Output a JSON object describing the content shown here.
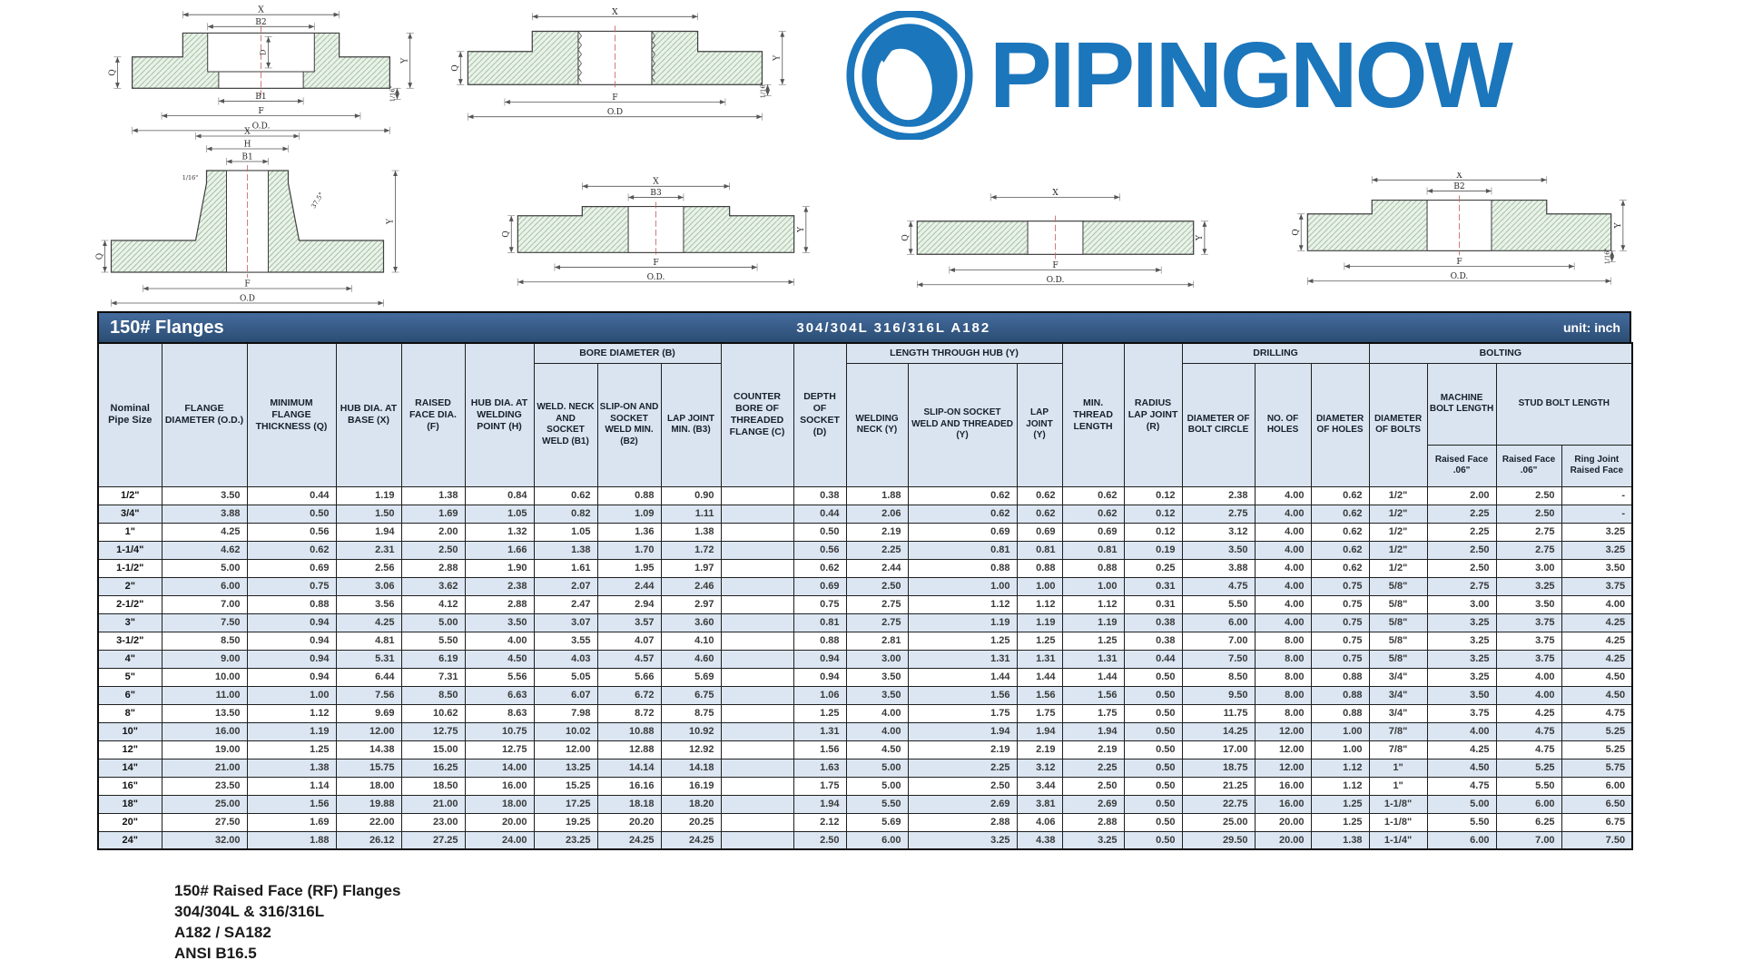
{
  "logo": {
    "text": "PIPINGNOW",
    "color": "#1b76bc"
  },
  "diagrams": [
    {
      "name": "socket-weld-flange",
      "labels": [
        "X",
        "B2",
        "D",
        "B1",
        "F",
        "O.D.",
        "Q",
        "Y",
        "1/16\""
      ]
    },
    {
      "name": "threaded-flange",
      "labels": [
        "X",
        "F",
        "O.D",
        "Q",
        "Y",
        "1/16\""
      ]
    },
    {
      "name": "weld-neck-flange",
      "labels": [
        "X",
        "H",
        "B1",
        "1/16\"",
        "37.5°",
        "Q",
        "F",
        "O.D",
        "Y"
      ]
    },
    {
      "name": "slip-on-flange",
      "labels": [
        "X",
        "B3",
        "Q",
        "F",
        "O.D.",
        "Y"
      ]
    },
    {
      "name": "lap-joint-stub",
      "labels": [
        "X",
        "Q",
        "F",
        "O.D.",
        "Y"
      ]
    },
    {
      "name": "lap-joint-flange",
      "labels": [
        "X",
        "B2",
        "Q",
        "F",
        "O.D.",
        "Y",
        "1/16\""
      ]
    }
  ],
  "table": {
    "title": "150# Flanges",
    "materials": "304/304L  316/316L  A182",
    "unit": "unit: inch",
    "columns": {
      "nominal": "Nominal Pipe Size",
      "flange_diameter": "FLANGE DIAMETER (O.D.)",
      "min_thickness": "MINIMUM FLANGE THICKNESS (Q)",
      "hub_base": "HUB DIA. AT BASE (X)",
      "raised_face": "RAISED FACE DIA. (F)",
      "hub_weld": "HUB DIA. AT WELDING POINT (H)",
      "bore_group": "BORE DIAMETER (B)",
      "b1": "WELD. NECK AND SOCKET WELD (B1)",
      "b2": "SLIP-ON AND SOCKET WELD MIN. (B2)",
      "b3": "LAP JOINT MIN. (B3)",
      "counter_bore": "COUNTER BORE OF THREADED FLANGE (C)",
      "socket_depth": "DEPTH OF SOCKET (D)",
      "hub_group": "LENGTH THROUGH HUB (Y)",
      "welding_neck": "WELDING NECK (Y)",
      "slip_on": "SLIP-ON SOCKET WELD AND THREADED (Y)",
      "lap_joint": "LAP JOINT (Y)",
      "min_thread": "MIN. THREAD LENGTH",
      "radius": "RADIUS LAP JOINT (R)",
      "drilling_group": "DRILLING",
      "bolt_circle": "DIAMETER OF BOLT CIRCLE",
      "num_holes": "NO. OF HOLES",
      "hole_dia": "DIAMETER OF HOLES",
      "bolting_group": "BOLTING",
      "bolt_dia": "DIAMETER OF BOLTS",
      "machine_bolt": "MACHINE BOLT LENGTH",
      "stud_bolt": "STUD BOLT LENGTH",
      "machine_rf": "Raised Face .06\"",
      "stud_rf": "Raised Face .06\"",
      "ring_joint": "Ring Joint Raised Face"
    },
    "rows": [
      [
        "1/2\"",
        "3.50",
        "0.44",
        "1.19",
        "1.38",
        "0.84",
        "0.62",
        "0.88",
        "0.90",
        "",
        "0.38",
        "1.88",
        "0.62",
        "0.62",
        "0.62",
        "0.12",
        "2.38",
        "4.00",
        "0.62",
        "1/2\"",
        "2.00",
        "2.50",
        "-"
      ],
      [
        "3/4\"",
        "3.88",
        "0.50",
        "1.50",
        "1.69",
        "1.05",
        "0.82",
        "1.09",
        "1.11",
        "",
        "0.44",
        "2.06",
        "0.62",
        "0.62",
        "0.62",
        "0.12",
        "2.75",
        "4.00",
        "0.62",
        "1/2\"",
        "2.25",
        "2.50",
        "-"
      ],
      [
        "1\"",
        "4.25",
        "0.56",
        "1.94",
        "2.00",
        "1.32",
        "1.05",
        "1.36",
        "1.38",
        "",
        "0.50",
        "2.19",
        "0.69",
        "0.69",
        "0.69",
        "0.12",
        "3.12",
        "4.00",
        "0.62",
        "1/2\"",
        "2.25",
        "2.75",
        "3.25"
      ],
      [
        "1-1/4\"",
        "4.62",
        "0.62",
        "2.31",
        "2.50",
        "1.66",
        "1.38",
        "1.70",
        "1.72",
        "",
        "0.56",
        "2.25",
        "0.81",
        "0.81",
        "0.81",
        "0.19",
        "3.50",
        "4.00",
        "0.62",
        "1/2\"",
        "2.50",
        "2.75",
        "3.25"
      ],
      [
        "1-1/2\"",
        "5.00",
        "0.69",
        "2.56",
        "2.88",
        "1.90",
        "1.61",
        "1.95",
        "1.97",
        "",
        "0.62",
        "2.44",
        "0.88",
        "0.88",
        "0.88",
        "0.25",
        "3.88",
        "4.00",
        "0.62",
        "1/2\"",
        "2.50",
        "3.00",
        "3.50"
      ],
      [
        "2\"",
        "6.00",
        "0.75",
        "3.06",
        "3.62",
        "2.38",
        "2.07",
        "2.44",
        "2.46",
        "",
        "0.69",
        "2.50",
        "1.00",
        "1.00",
        "1.00",
        "0.31",
        "4.75",
        "4.00",
        "0.75",
        "5/8\"",
        "2.75",
        "3.25",
        "3.75"
      ],
      [
        "2-1/2\"",
        "7.00",
        "0.88",
        "3.56",
        "4.12",
        "2.88",
        "2.47",
        "2.94",
        "2.97",
        "",
        "0.75",
        "2.75",
        "1.12",
        "1.12",
        "1.12",
        "0.31",
        "5.50",
        "4.00",
        "0.75",
        "5/8\"",
        "3.00",
        "3.50",
        "4.00"
      ],
      [
        "3\"",
        "7.50",
        "0.94",
        "4.25",
        "5.00",
        "3.50",
        "3.07",
        "3.57",
        "3.60",
        "",
        "0.81",
        "2.75",
        "1.19",
        "1.19",
        "1.19",
        "0.38",
        "6.00",
        "4.00",
        "0.75",
        "5/8\"",
        "3.25",
        "3.75",
        "4.25"
      ],
      [
        "3-1/2\"",
        "8.50",
        "0.94",
        "4.81",
        "5.50",
        "4.00",
        "3.55",
        "4.07",
        "4.10",
        "",
        "0.88",
        "2.81",
        "1.25",
        "1.25",
        "1.25",
        "0.38",
        "7.00",
        "8.00",
        "0.75",
        "5/8\"",
        "3.25",
        "3.75",
        "4.25"
      ],
      [
        "4\"",
        "9.00",
        "0.94",
        "5.31",
        "6.19",
        "4.50",
        "4.03",
        "4.57",
        "4.60",
        "",
        "0.94",
        "3.00",
        "1.31",
        "1.31",
        "1.31",
        "0.44",
        "7.50",
        "8.00",
        "0.75",
        "5/8\"",
        "3.25",
        "3.75",
        "4.25"
      ],
      [
        "5\"",
        "10.00",
        "0.94",
        "6.44",
        "7.31",
        "5.56",
        "5.05",
        "5.66",
        "5.69",
        "",
        "0.94",
        "3.50",
        "1.44",
        "1.44",
        "1.44",
        "0.50",
        "8.50",
        "8.00",
        "0.88",
        "3/4\"",
        "3.25",
        "4.00",
        "4.50"
      ],
      [
        "6\"",
        "11.00",
        "1.00",
        "7.56",
        "8.50",
        "6.63",
        "6.07",
        "6.72",
        "6.75",
        "",
        "1.06",
        "3.50",
        "1.56",
        "1.56",
        "1.56",
        "0.50",
        "9.50",
        "8.00",
        "0.88",
        "3/4\"",
        "3.50",
        "4.00",
        "4.50"
      ],
      [
        "8\"",
        "13.50",
        "1.12",
        "9.69",
        "10.62",
        "8.63",
        "7.98",
        "8.72",
        "8.75",
        "",
        "1.25",
        "4.00",
        "1.75",
        "1.75",
        "1.75",
        "0.50",
        "11.75",
        "8.00",
        "0.88",
        "3/4\"",
        "3.75",
        "4.25",
        "4.75"
      ],
      [
        "10\"",
        "16.00",
        "1.19",
        "12.00",
        "12.75",
        "10.75",
        "10.02",
        "10.88",
        "10.92",
        "",
        "1.31",
        "4.00",
        "1.94",
        "1.94",
        "1.94",
        "0.50",
        "14.25",
        "12.00",
        "1.00",
        "7/8\"",
        "4.00",
        "4.75",
        "5.25"
      ],
      [
        "12\"",
        "19.00",
        "1.25",
        "14.38",
        "15.00",
        "12.75",
        "12.00",
        "12.88",
        "12.92",
        "",
        "1.56",
        "4.50",
        "2.19",
        "2.19",
        "2.19",
        "0.50",
        "17.00",
        "12.00",
        "1.00",
        "7/8\"",
        "4.25",
        "4.75",
        "5.25"
      ],
      [
        "14\"",
        "21.00",
        "1.38",
        "15.75",
        "16.25",
        "14.00",
        "13.25",
        "14.14",
        "14.18",
        "",
        "1.63",
        "5.00",
        "2.25",
        "3.12",
        "2.25",
        "0.50",
        "18.75",
        "12.00",
        "1.12",
        "1\"",
        "4.50",
        "5.25",
        "5.75"
      ],
      [
        "16\"",
        "23.50",
        "1.14",
        "18.00",
        "18.50",
        "16.00",
        "15.25",
        "16.16",
        "16.19",
        "",
        "1.75",
        "5.00",
        "2.50",
        "3.44",
        "2.50",
        "0.50",
        "21.25",
        "16.00",
        "1.12",
        "1\"",
        "4.75",
        "5.50",
        "6.00"
      ],
      [
        "18\"",
        "25.00",
        "1.56",
        "19.88",
        "21.00",
        "18.00",
        "17.25",
        "18.18",
        "18.20",
        "",
        "1.94",
        "5.50",
        "2.69",
        "3.81",
        "2.69",
        "0.50",
        "22.75",
        "16.00",
        "1.25",
        "1-1/8\"",
        "5.00",
        "6.00",
        "6.50"
      ],
      [
        "20\"",
        "27.50",
        "1.69",
        "22.00",
        "23.00",
        "20.00",
        "19.25",
        "20.20",
        "20.25",
        "",
        "2.12",
        "5.69",
        "2.88",
        "4.06",
        "2.88",
        "0.50",
        "25.00",
        "20.00",
        "1.25",
        "1-1/8\"",
        "5.50",
        "6.25",
        "6.75"
      ],
      [
        "24\"",
        "32.00",
        "1.88",
        "26.12",
        "27.25",
        "24.00",
        "23.25",
        "24.25",
        "24.25",
        "",
        "2.50",
        "6.00",
        "3.25",
        "4.38",
        "3.25",
        "0.50",
        "29.50",
        "20.00",
        "1.38",
        "1-1/4\"",
        "6.00",
        "7.00",
        "7.50"
      ]
    ]
  },
  "footer": {
    "line1": "150# Raised Face (RF) Flanges",
    "line2": "304/304L & 316/316L",
    "line3": "A182 / SA182",
    "line4": "ANSI B16.5"
  }
}
